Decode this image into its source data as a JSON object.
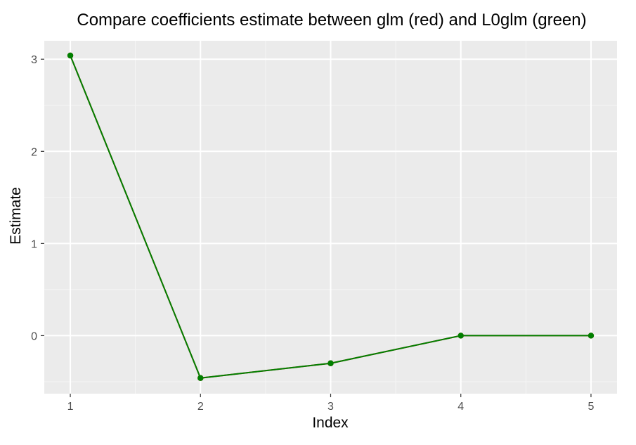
{
  "chart_data": {
    "type": "line",
    "title": "Compare coefficients estimate between glm (red) and L0glm (green)",
    "xlabel": "Index",
    "ylabel": "Estimate",
    "xlim": [
      0.8,
      5.2
    ],
    "ylim": [
      -0.63,
      3.2
    ],
    "x_ticks": [
      1,
      2,
      3,
      4,
      5
    ],
    "x_minor": [
      1.5,
      2.5,
      3.5,
      4.5
    ],
    "y_ticks": [
      0,
      1,
      2,
      3
    ],
    "y_minor": [
      -0.5,
      0.5,
      1.5,
      2.5
    ],
    "grid": true,
    "series": [
      {
        "color": "#e41a1c",
        "x": [
          1,
          2,
          3,
          4,
          5
        ],
        "y": [
          3.04,
          -0.46,
          -0.3,
          0.0,
          0.0
        ]
      },
      {
        "color": "#008000",
        "x": [
          1,
          2,
          3,
          4,
          5
        ],
        "y": [
          3.04,
          -0.46,
          -0.3,
          0.0,
          0.0
        ]
      }
    ],
    "colors": {
      "panel_background": "#ebebeb",
      "grid_major": "#ffffff",
      "grid_minor": "#f5f5f5"
    }
  }
}
